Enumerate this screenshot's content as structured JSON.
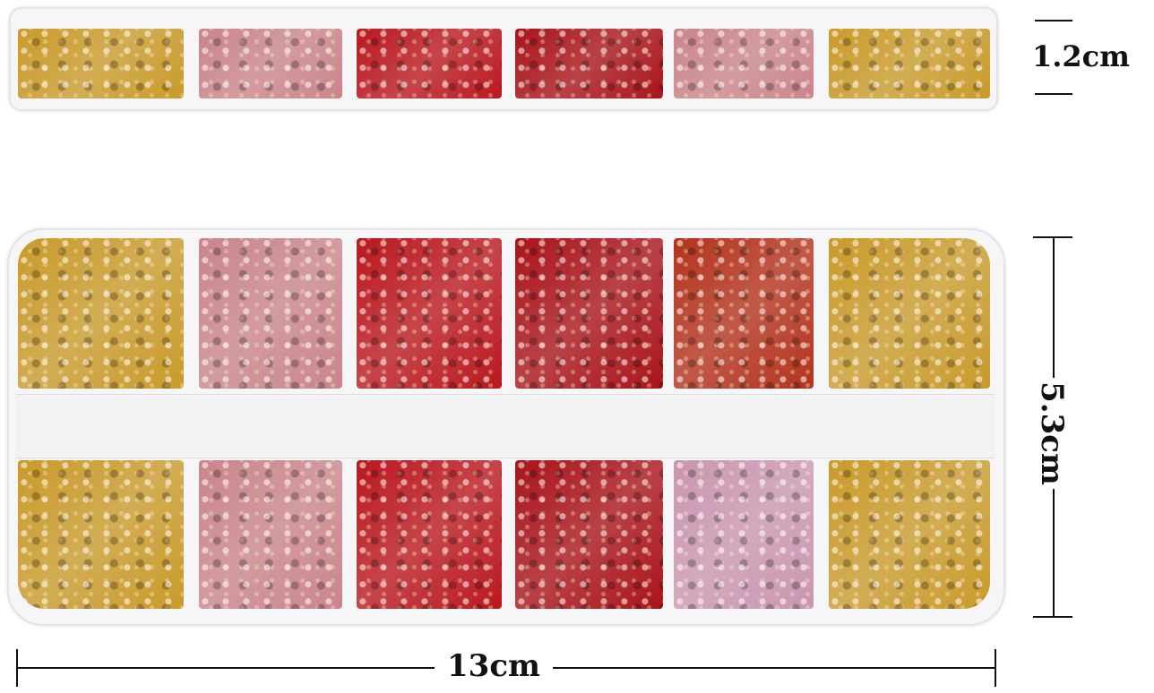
{
  "dimensions": {
    "height_label": "1.2cm",
    "width_short_label": "5.3cm",
    "length_label": "13cm"
  },
  "colors": {
    "gold": "#c99a2a",
    "pink": "#c9848a",
    "red": "#b9181e",
    "deep_red": "#a8141a",
    "orange_red": "#b3321c",
    "iridescent_pink": "#c995b0"
  },
  "compartments": {
    "top_row": [
      "gold",
      "pink",
      "red",
      "deep_red",
      "orange_red",
      "gold"
    ],
    "bottom_row": [
      "gold",
      "pink",
      "red",
      "deep_red",
      "iridescent_pink",
      "gold"
    ],
    "side_view": [
      "gold",
      "pink",
      "red",
      "deep_red",
      "pink",
      "gold"
    ]
  }
}
